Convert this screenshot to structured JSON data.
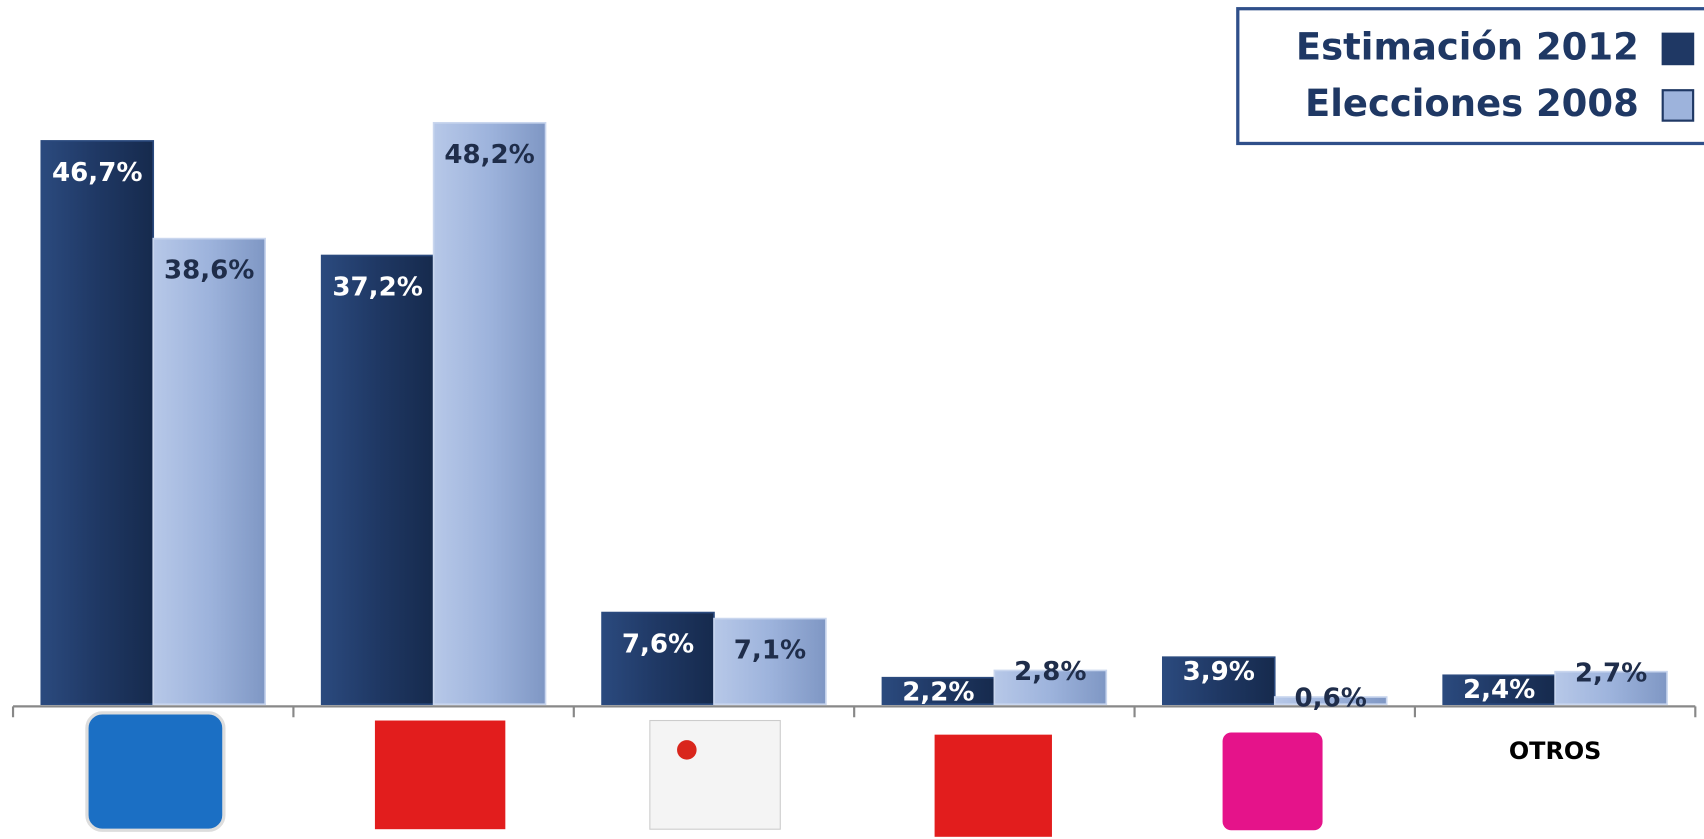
{
  "chart_data": {
    "type": "bar",
    "categories": [
      null,
      null,
      null,
      null,
      null,
      "OTROS"
    ],
    "series": [
      {
        "name": "Estimación 2012",
        "color": "#1f3864",
        "values": [
          46.7,
          37.2,
          7.6,
          2.2,
          3.9,
          2.4
        ],
        "value_labels": [
          "46,7%",
          "37,2%",
          "7,6%",
          "2,2%",
          "3,9%",
          "2,4%"
        ]
      },
      {
        "name": "Elecciones 2008",
        "color": "#9db3dc",
        "values": [
          38.6,
          48.2,
          7.1,
          2.8,
          0.6,
          2.7
        ],
        "value_labels": [
          "38,6%",
          "48,2%",
          "7,1%",
          "2,8%",
          "0,6%",
          "2,7%"
        ]
      }
    ],
    "legend": "top-right"
  }
}
